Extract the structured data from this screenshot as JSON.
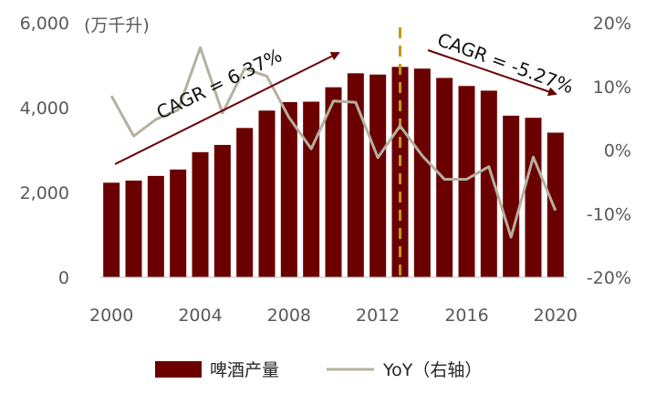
{
  "chart_data": {
    "type": "bar",
    "unit_label": "(万千升)",
    "categories": [
      "2000",
      "2001",
      "2002",
      "2003",
      "2004",
      "2005",
      "2006",
      "2007",
      "2008",
      "2009",
      "2010",
      "2011",
      "2012",
      "2013",
      "2014",
      "2015",
      "2016",
      "2017",
      "2018",
      "2019",
      "2020"
    ],
    "x_tick_labels": [
      "2000",
      "2004",
      "2008",
      "2012",
      "2016",
      "2020"
    ],
    "series": [
      {
        "name": "啤酒产量",
        "type": "bar",
        "axis": "left",
        "color": "#6b0000",
        "values": [
          2230,
          2280,
          2390,
          2540,
          2950,
          3120,
          3520,
          3930,
          4130,
          4140,
          4480,
          4810,
          4780,
          4960,
          4920,
          4700,
          4510,
          4400,
          3810,
          3760,
          3410
        ]
      },
      {
        "name": "YoY（右轴）",
        "type": "line",
        "axis": "right",
        "color": "#b5b09f",
        "values": [
          8.5,
          2.2,
          4.8,
          6.3,
          16.1,
          5.8,
          12.8,
          11.6,
          5.1,
          0.2,
          7.7,
          7.5,
          -1.2,
          3.8,
          -0.9,
          -4.6,
          -4.6,
          -2.6,
          -13.7,
          -1.1,
          -9.5
        ]
      }
    ],
    "y_left": {
      "min": 0,
      "max": 6000,
      "ticks": [
        0,
        2000,
        4000,
        6000
      ],
      "tick_labels": [
        "0",
        "2,000",
        "4,000",
        "6,000"
      ]
    },
    "y_right": {
      "min": -20,
      "max": 20,
      "ticks": [
        -20,
        -10,
        0,
        10,
        20
      ],
      "tick_labels": [
        "-20%",
        "-10%",
        "0%",
        "10%",
        "20%"
      ]
    },
    "annotations": [
      {
        "text": "CAGR = 6.37%",
        "kind": "arrow",
        "color": "#6b0000"
      },
      {
        "text": "CAGR = -5.27%",
        "kind": "arrow",
        "color": "#6b0000"
      }
    ],
    "reference_line": {
      "x": "2013",
      "color": "#c8960e",
      "style": "dashed"
    },
    "legend": {
      "position": "bottom",
      "items": [
        "啤酒产量",
        "YoY（右轴）"
      ]
    },
    "grid": false
  }
}
